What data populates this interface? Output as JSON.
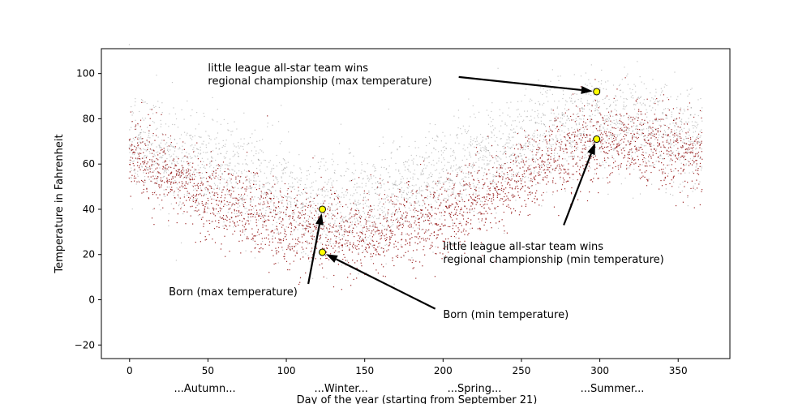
{
  "chart_data": {
    "type": "scatter",
    "title": "",
    "xlabel": "Day of the year (starting from September 21)",
    "ylabel": "Temperature in Fahrenheit",
    "xlim": [
      -18,
      383
    ],
    "ylim": [
      -26,
      111
    ],
    "x_ticks": [
      0,
      50,
      100,
      150,
      200,
      250,
      300,
      350
    ],
    "y_ticks": [
      -20,
      0,
      20,
      40,
      60,
      80,
      100
    ],
    "season_labels": [
      {
        "x": 48,
        "text": "...Autumn..."
      },
      {
        "x": 135,
        "text": "...Winter..."
      },
      {
        "x": 220,
        "text": "...Spring..."
      },
      {
        "x": 308,
        "text": "...Summer..."
      }
    ],
    "series": [
      {
        "color": "#8b0000",
        "x": [
          0,
          15,
          30,
          45,
          60,
          75,
          90,
          105,
          120,
          135,
          150,
          165,
          180,
          195,
          210,
          225,
          240,
          255,
          270,
          285,
          300,
          315,
          330,
          345,
          365
        ],
        "y": [
          63,
          58,
          53,
          48,
          43,
          38,
          34,
          31,
          30,
          29,
          28,
          30,
          32,
          36,
          40,
          44,
          50,
          56,
          62,
          67,
          70,
          70,
          69,
          66,
          63
        ]
      },
      {
        "color": "#808080",
        "x": [
          0,
          15,
          30,
          45,
          60,
          75,
          90,
          105,
          120,
          135,
          150,
          165,
          180,
          195,
          210,
          225,
          240,
          255,
          270,
          285,
          300,
          315,
          330,
          345,
          365
        ],
        "y": [
          70,
          66,
          62,
          59,
          56,
          52,
          48,
          44,
          42,
          41,
          42,
          45,
          49,
          54,
          58,
          62,
          66,
          70,
          74,
          77,
          78,
          78,
          77,
          74,
          70
        ]
      }
    ],
    "highlight_points": [
      {
        "x": 123,
        "y": 40,
        "color": "#ffff00"
      },
      {
        "x": 123,
        "y": 21,
        "color": "#ffff00"
      },
      {
        "x": 298,
        "y": 92,
        "color": "#ffff00"
      },
      {
        "x": 298,
        "y": 71,
        "color": "#ffff00"
      }
    ],
    "annotations": [
      {
        "text": "Born (max temperature)",
        "point": [
          123,
          40
        ],
        "text_x": 25,
        "text_y": 2,
        "anchor": "start",
        "tail_x": 114,
        "tail_y": 7
      },
      {
        "text": "Born (min temperature)",
        "point": [
          123,
          21
        ],
        "text_x": 200,
        "text_y": -8,
        "anchor": "start",
        "tail_x": 195,
        "tail_y": -4
      },
      {
        "lines": [
          "little league all-star team wins",
          "regional championship (max temperature)"
        ],
        "point": [
          298,
          92
        ],
        "text_x": 50,
        "text_y": 101,
        "anchor": "start",
        "tail_x": 210,
        "tail_y": 98.5
      },
      {
        "lines": [
          "little league all-star team wins",
          "regional championship (min temperature)"
        ],
        "point": [
          298,
          71
        ],
        "text_x": 200,
        "text_y": 22,
        "anchor": "start",
        "tail_x": 277,
        "tail_y": 33
      }
    ]
  }
}
